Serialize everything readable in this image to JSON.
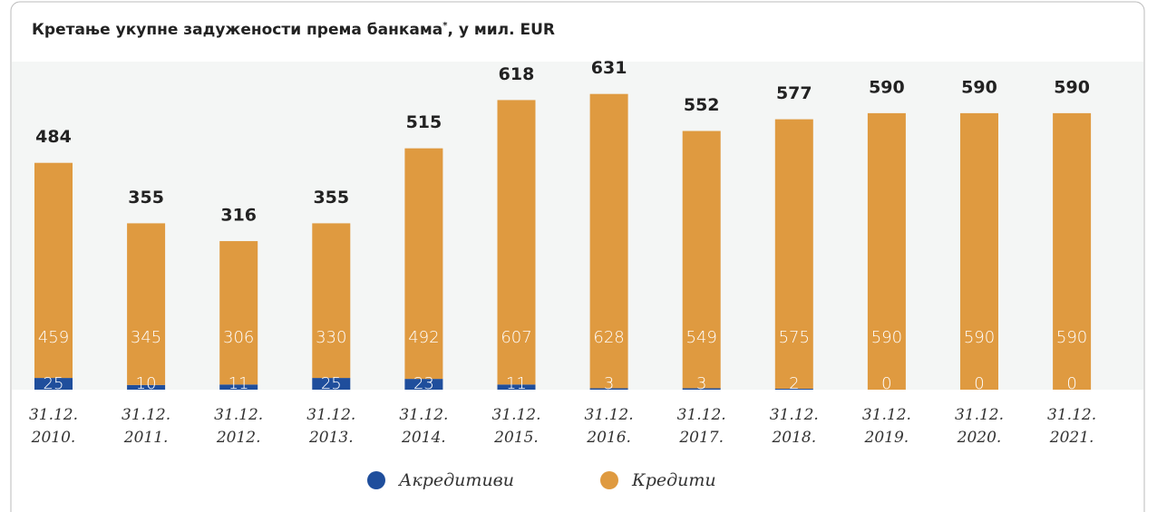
{
  "chart_data": {
    "type": "stacked_bar",
    "title": "Кретање укупне задужености према банкама",
    "title_note_mark": "*",
    "title_rest": ", у мил. EUR",
    "categories": [
      "31.12. 2010.",
      "31.12. 2011.",
      "31.12. 2012.",
      "31.12. 2013.",
      "31.12. 2014.",
      "31.12. 2015.",
      "31.12. 2016.",
      "31.12. 2017.",
      "31.12. 2018.",
      "31.12. 2019.",
      "31.12. 2020.",
      "31.12. 2021."
    ],
    "series": [
      {
        "name": "Акредитиви",
        "color": "#1f4e9c",
        "values": [
          25,
          10,
          11,
          25,
          23,
          11,
          3,
          3,
          2,
          0,
          0,
          0
        ]
      },
      {
        "name": "Кредити",
        "color": "#df9a40",
        "values": [
          459,
          345,
          306,
          330,
          492,
          607,
          628,
          549,
          575,
          590,
          590,
          590
        ]
      }
    ],
    "totals": [
      484,
      355,
      316,
      355,
      515,
      618,
      631,
      552,
      577,
      590,
      590,
      590
    ],
    "ylim": [
      0,
      700
    ]
  }
}
